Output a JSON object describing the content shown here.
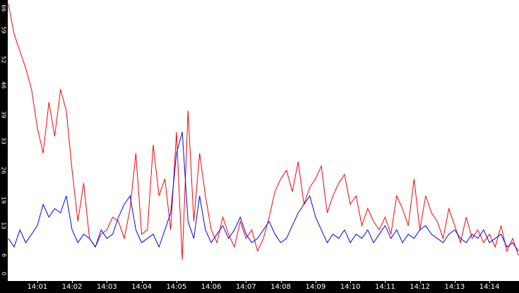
{
  "chart_data": {
    "type": "line",
    "title": "",
    "xlabel": "",
    "ylabel": "",
    "ylim": [
      0,
      66
    ],
    "yticks": [
      "0",
      "6",
      "13",
      "19",
      "26",
      "33",
      "39",
      "46",
      "52",
      "59",
      "66"
    ],
    "xticks": [
      "14:01",
      "14:02",
      "14:03",
      "14:04",
      "14:05",
      "14:06",
      "14:07",
      "14:08",
      "14:09",
      "14:10",
      "14:11",
      "14:12",
      "14:13",
      "14:14"
    ],
    "grid": false,
    "legend": "none",
    "x_range": [
      "14:00:09",
      "14:14:51"
    ],
    "series": [
      {
        "color": "#ff0000",
        "x": [
          "14:00:10",
          "14:00:20",
          "14:00:30",
          "14:00:40",
          "14:00:50",
          "14:01:00",
          "14:01:10",
          "14:01:20",
          "14:01:30",
          "14:01:40",
          "14:01:50",
          "14:02:00",
          "14:02:10",
          "14:02:20",
          "14:02:30",
          "14:02:40",
          "14:02:50",
          "14:03:00",
          "14:03:10",
          "14:03:20",
          "14:03:30",
          "14:03:40",
          "14:03:50",
          "14:04:00",
          "14:04:10",
          "14:04:20",
          "14:04:30",
          "14:04:40",
          "14:04:50",
          "14:05:00",
          "14:05:10",
          "14:05:20",
          "14:05:30",
          "14:05:40",
          "14:05:50",
          "14:06:00",
          "14:06:10",
          "14:06:20",
          "14:06:30",
          "14:06:40",
          "14:06:50",
          "14:07:00",
          "14:07:10",
          "14:07:20",
          "14:07:30",
          "14:07:40",
          "14:07:50",
          "14:08:00",
          "14:08:10",
          "14:08:20",
          "14:08:30",
          "14:08:40",
          "14:08:50",
          "14:09:00",
          "14:09:10",
          "14:09:20",
          "14:09:30",
          "14:09:40",
          "14:09:50",
          "14:10:00",
          "14:10:10",
          "14:10:20",
          "14:10:30",
          "14:10:40",
          "14:10:50",
          "14:11:00",
          "14:11:10",
          "14:11:20",
          "14:11:30",
          "14:11:40",
          "14:11:50",
          "14:12:00",
          "14:12:10",
          "14:12:20",
          "14:12:30",
          "14:12:40",
          "14:12:50",
          "14:13:00",
          "14:13:10",
          "14:13:20",
          "14:13:30",
          "14:13:40",
          "14:13:50",
          "14:14:00",
          "14:14:10",
          "14:14:20",
          "14:14:30",
          "14:14:40",
          "14:14:50"
        ],
        "values": [
          65,
          58,
          54,
          50,
          45,
          36,
          30,
          42,
          34,
          45,
          40,
          26,
          14,
          23,
          10,
          8,
          11,
          12,
          15,
          14,
          10,
          17,
          30,
          11,
          12,
          32,
          20,
          24,
          12,
          35,
          5,
          40,
          14,
          30,
          20,
          12,
          9,
          15,
          11,
          8,
          14,
          10,
          12,
          7,
          10,
          15,
          21,
          24,
          26,
          21,
          28,
          18,
          22,
          24,
          27,
          16,
          20,
          23,
          25,
          18,
          20,
          13,
          17,
          14,
          12,
          15,
          11,
          20,
          17,
          13,
          24,
          12,
          20,
          16,
          14,
          10,
          17,
          13,
          9,
          15,
          10,
          12,
          9,
          11,
          8,
          13,
          7,
          10,
          6
        ]
      },
      {
        "color": "#0000ff",
        "x": [
          "14:00:10",
          "14:00:20",
          "14:00:30",
          "14:00:40",
          "14:00:50",
          "14:01:00",
          "14:01:10",
          "14:01:20",
          "14:01:30",
          "14:01:40",
          "14:01:50",
          "14:02:00",
          "14:02:10",
          "14:02:20",
          "14:02:30",
          "14:02:40",
          "14:02:50",
          "14:03:00",
          "14:03:10",
          "14:03:20",
          "14:03:30",
          "14:03:40",
          "14:03:50",
          "14:04:00",
          "14:04:10",
          "14:04:20",
          "14:04:30",
          "14:04:40",
          "14:04:50",
          "14:05:00",
          "14:05:10",
          "14:05:20",
          "14:05:30",
          "14:05:40",
          "14:05:50",
          "14:06:00",
          "14:06:10",
          "14:06:20",
          "14:06:30",
          "14:06:40",
          "14:06:50",
          "14:07:00",
          "14:07:10",
          "14:07:20",
          "14:07:30",
          "14:07:40",
          "14:07:50",
          "14:08:00",
          "14:08:10",
          "14:08:20",
          "14:08:30",
          "14:08:40",
          "14:08:50",
          "14:09:00",
          "14:09:10",
          "14:09:20",
          "14:09:30",
          "14:09:40",
          "14:09:50",
          "14:10:00",
          "14:10:10",
          "14:10:20",
          "14:10:30",
          "14:10:40",
          "14:10:50",
          "14:11:00",
          "14:11:10",
          "14:11:20",
          "14:11:30",
          "14:11:40",
          "14:11:50",
          "14:12:00",
          "14:12:10",
          "14:12:20",
          "14:12:30",
          "14:12:40",
          "14:12:50",
          "14:13:00",
          "14:13:10",
          "14:13:20",
          "14:13:30",
          "14:13:40",
          "14:13:50",
          "14:14:00",
          "14:14:10",
          "14:14:20",
          "14:14:30",
          "14:14:40",
          "14:14:50"
        ],
        "values": [
          10,
          8,
          12,
          9,
          11,
          13,
          18,
          15,
          17,
          16,
          20,
          12,
          9,
          11,
          10,
          8,
          12,
          10,
          11,
          15,
          18,
          20,
          12,
          9,
          10,
          11,
          8,
          12,
          16,
          30,
          35,
          14,
          10,
          20,
          12,
          9,
          11,
          13,
          10,
          12,
          15,
          11,
          9,
          10,
          12,
          14,
          11,
          9,
          10,
          13,
          16,
          18,
          20,
          15,
          12,
          9,
          11,
          10,
          12,
          9,
          11,
          10,
          12,
          9,
          11,
          13,
          10,
          12,
          9,
          11,
          10,
          12,
          13,
          11,
          10,
          9,
          11,
          12,
          10,
          9,
          11,
          10,
          12,
          9,
          10,
          11,
          8,
          9,
          7
        ]
      }
    ]
  }
}
